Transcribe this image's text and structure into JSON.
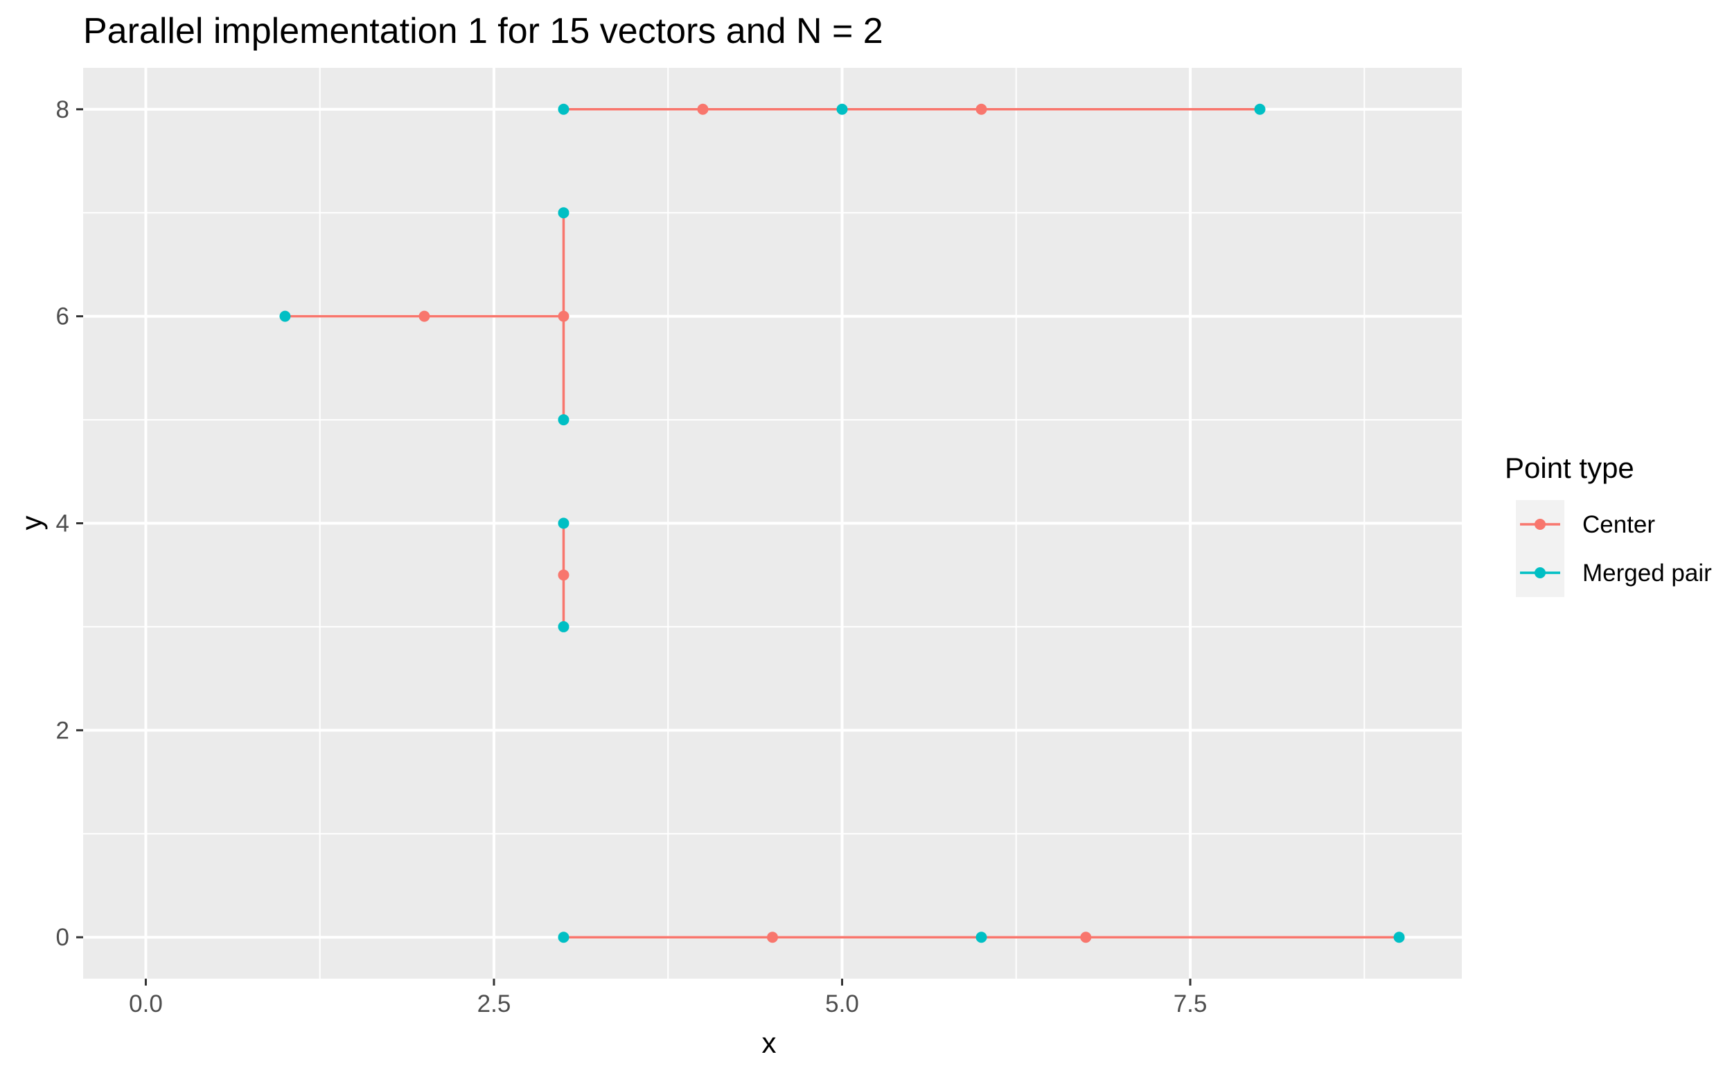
{
  "chart_data": {
    "type": "scatter",
    "title": "Parallel implementation 1 for 15 vectors and N = 2",
    "xlabel": "x",
    "ylabel": "y",
    "xlim": [
      -0.45,
      9.45
    ],
    "ylim": [
      -0.4,
      8.4
    ],
    "x_ticks": [
      0,
      2.5,
      5,
      7.5
    ],
    "x_tick_labels": [
      "0.0",
      "2.5",
      "5.0",
      "7.5"
    ],
    "y_ticks": [
      0,
      2,
      4,
      6,
      8
    ],
    "y_tick_labels": [
      "0",
      "2",
      "4",
      "6",
      "8"
    ],
    "grid": true,
    "legend": {
      "title": "Point type",
      "placement": "right",
      "entries": [
        "Center",
        "Merged pair"
      ]
    },
    "colors": {
      "Center": "#F8766D",
      "Merged pair": "#00BFC4",
      "panel_background": "#EBEBEB",
      "grid": "#FFFFFF"
    },
    "segments": [
      {
        "x": [
          3,
          8
        ],
        "y": [
          8,
          8
        ]
      },
      {
        "x": [
          1,
          3
        ],
        "y": [
          6,
          6
        ]
      },
      {
        "x": [
          3,
          3
        ],
        "y": [
          5,
          7
        ]
      },
      {
        "x": [
          3,
          3
        ],
        "y": [
          3,
          4
        ]
      },
      {
        "x": [
          3,
          9
        ],
        "y": [
          0,
          0
        ]
      }
    ],
    "series": [
      {
        "name": "Center",
        "points": [
          [
            4,
            8
          ],
          [
            6,
            8
          ],
          [
            2,
            6
          ],
          [
            3,
            6
          ],
          [
            3,
            3.5
          ],
          [
            4.5,
            0
          ],
          [
            6.75,
            0
          ]
        ]
      },
      {
        "name": "Merged pair",
        "points": [
          [
            3,
            8
          ],
          [
            5,
            8
          ],
          [
            8,
            8
          ],
          [
            1,
            6
          ],
          [
            3,
            7
          ],
          [
            3,
            5
          ],
          [
            3,
            4
          ],
          [
            3,
            3
          ],
          [
            3,
            0
          ],
          [
            6,
            0
          ],
          [
            9,
            0
          ]
        ]
      }
    ]
  }
}
